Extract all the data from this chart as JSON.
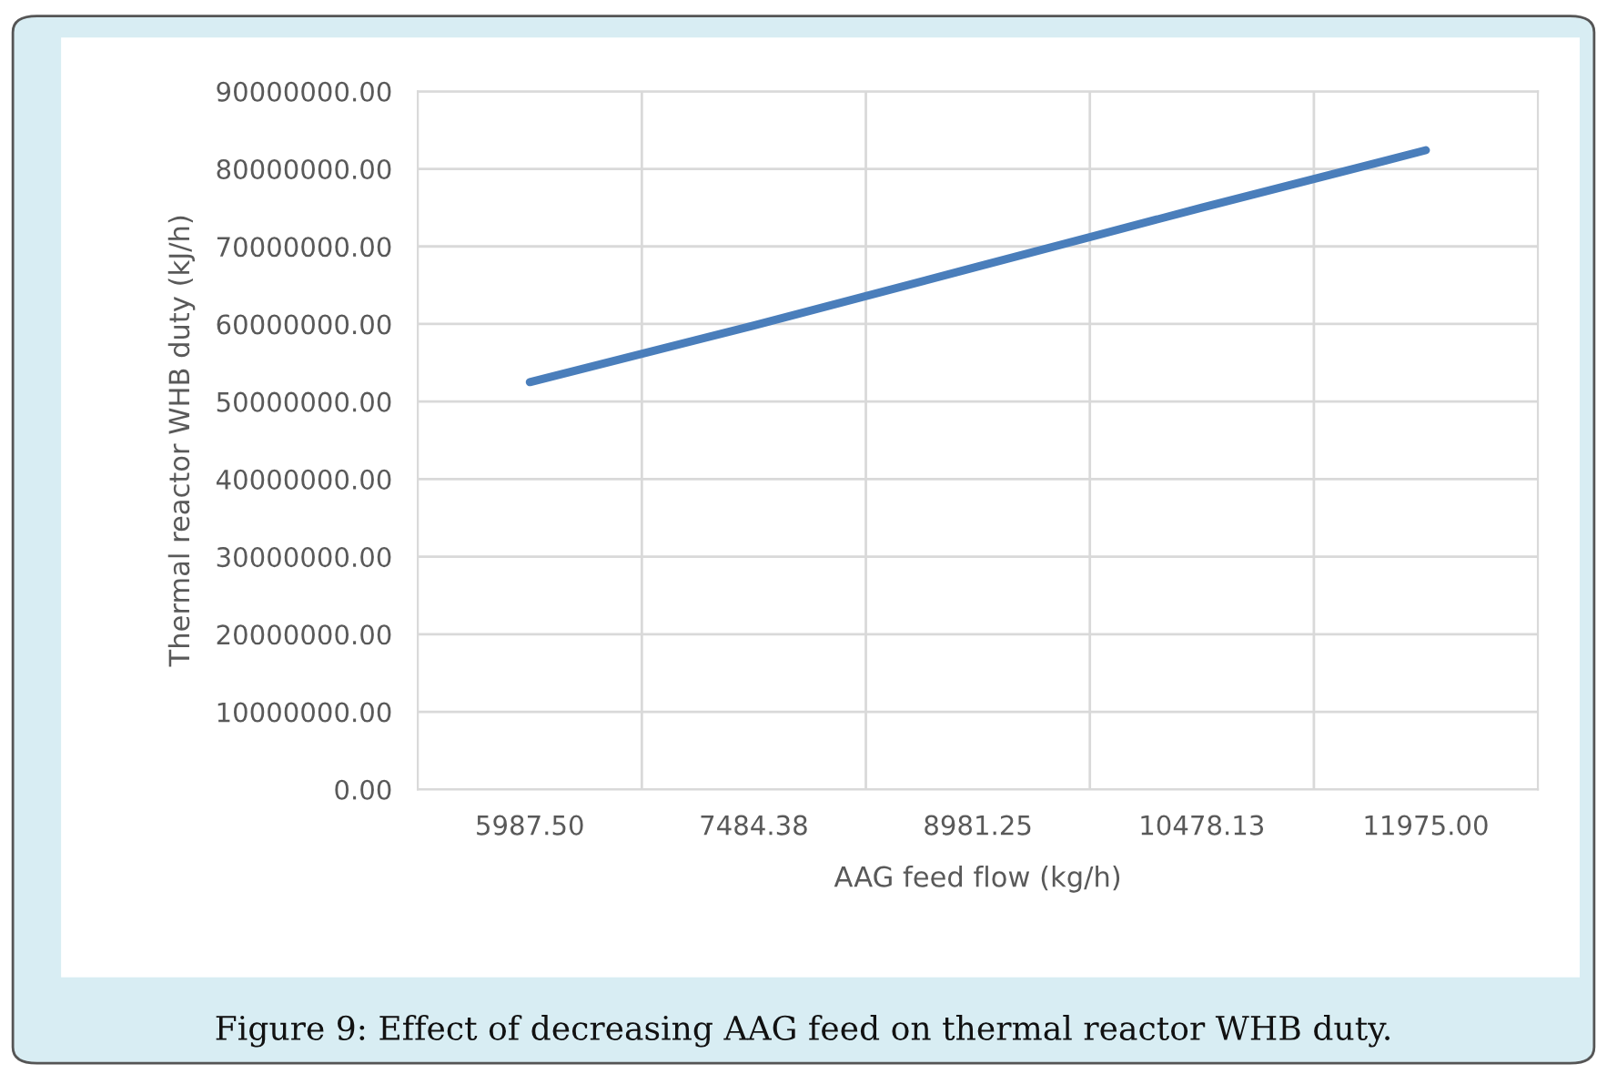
{
  "chart_data": {
    "type": "line",
    "xlabel": "AAG feed flow (kg/h)",
    "ylabel": "Thermal reactor WHB duty (kJ/h)",
    "categories": [
      "5987.50",
      "7484.38",
      "8981.25",
      "10478.13",
      "11975.00"
    ],
    "series": [
      {
        "color": "#4a7ebb",
        "values": [
          52500000,
          59800000,
          67400000,
          75000000,
          82400000
        ]
      }
    ],
    "ylim": [
      0,
      90000000
    ],
    "yticks": [
      {
        "value": 0,
        "label": "0.00"
      },
      {
        "value": 10000000,
        "label": "10000000.00"
      },
      {
        "value": 20000000,
        "label": "20000000.00"
      },
      {
        "value": 30000000,
        "label": "30000000.00"
      },
      {
        "value": 40000000,
        "label": "40000000.00"
      },
      {
        "value": 50000000,
        "label": "50000000.00"
      },
      {
        "value": 60000000,
        "label": "60000000.00"
      },
      {
        "value": 70000000,
        "label": "70000000.00"
      },
      {
        "value": 80000000,
        "label": "80000000.00"
      },
      {
        "value": 90000000,
        "label": "90000000.00"
      }
    ],
    "grid": true,
    "legend": false,
    "marker": "none",
    "line_style": "solid",
    "annotations": [
      "Figure 9: Effect of decreasing AAG feed on thermal reactor WHB duty."
    ]
  }
}
